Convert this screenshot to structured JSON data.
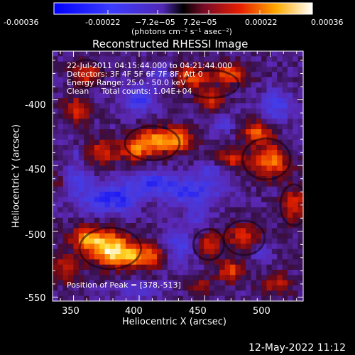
{
  "chart_data": {
    "type": "heatmap",
    "title": "Reconstructed RHESSI Image",
    "xlabel": "Heliocentric X (arcsec)",
    "ylabel": "Heliocentric Y (arcsec)",
    "xlim": [
      334,
      525
    ],
    "ylim": [
      -553,
      -363
    ],
    "xticks": [
      350,
      400,
      450,
      500
    ],
    "yticks": [
      -400,
      -450,
      -500,
      -550
    ],
    "colorbar": {
      "range": [
        -0.00036,
        0.00036
      ],
      "ticks": [
        "-0.00036",
        "-0.00022",
        "−7.2e−05",
        "7.2e−05",
        "0.00022",
        "0.00036"
      ],
      "units": "(photons cm⁻² s⁻¹ asec⁻²)"
    },
    "annotations": [
      "22-Jul-2011 04:15:44.000 to 04:21:44.000",
      "Detectors: 3F 4F 5F 6F 7F 8F, Att 0",
      "Energy Range: 25.0 - 50.0 keV",
      "Clean     Total counts: 1.04E+04"
    ],
    "peak_label": "Position of Peak = [378,-513]",
    "peak": [
      378,
      -513
    ]
  },
  "footer": {
    "timestamp": "12-May-2022 11:12"
  }
}
